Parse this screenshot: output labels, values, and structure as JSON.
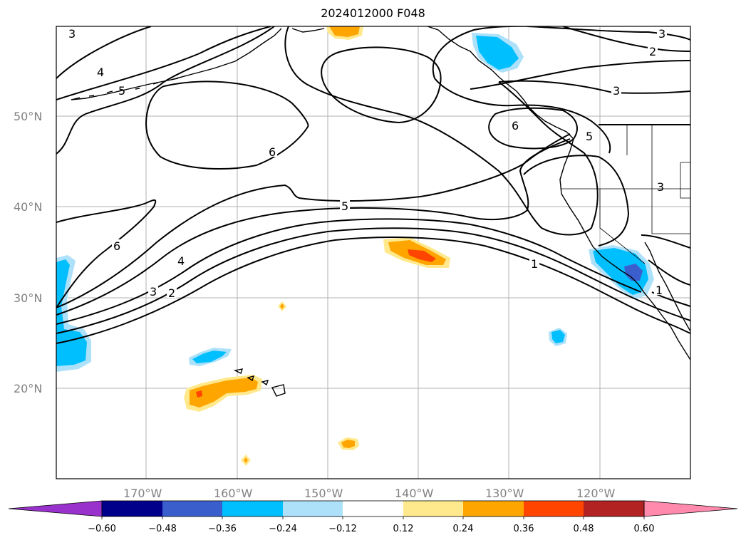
{
  "title": "2024012000 F048",
  "latitude_labels": [
    "50°N",
    "40°N",
    "30°N",
    "20°N"
  ],
  "longitude_labels": [
    "170°W",
    "160°W",
    "150°W",
    "140°W",
    "130°W",
    "120°W"
  ],
  "contour_labels": [
    "3",
    "4",
    "5",
    "6",
    "5",
    "6",
    "4",
    "3",
    "2",
    "1",
    "6",
    "5",
    "3",
    "2",
    "3",
    "3",
    "1"
  ],
  "colorbar": {
    "ticks": [
      "−0.60",
      "−0.48",
      "−0.36",
      "−0.24",
      "−0.12",
      "0.12",
      "0.24",
      "0.36",
      "0.48",
      "0.60"
    ],
    "colors": [
      "#9932CC",
      "#00008B",
      "#3A5FCD",
      "#00BFFF",
      "#ADE1FA",
      "#FFFFFF",
      "#FFE98C",
      "#FFA500",
      "#FF4500",
      "#B22222",
      "#FF8AAE"
    ]
  },
  "fill_colors": {
    "neg_light": "#ADE1FA",
    "neg_medium": "#00BFFF",
    "neg_strong": "#3A5FCD",
    "pos_light": "#FFE98C",
    "pos_medium": "#FFA500",
    "pos_strong": "#FF4500"
  }
}
